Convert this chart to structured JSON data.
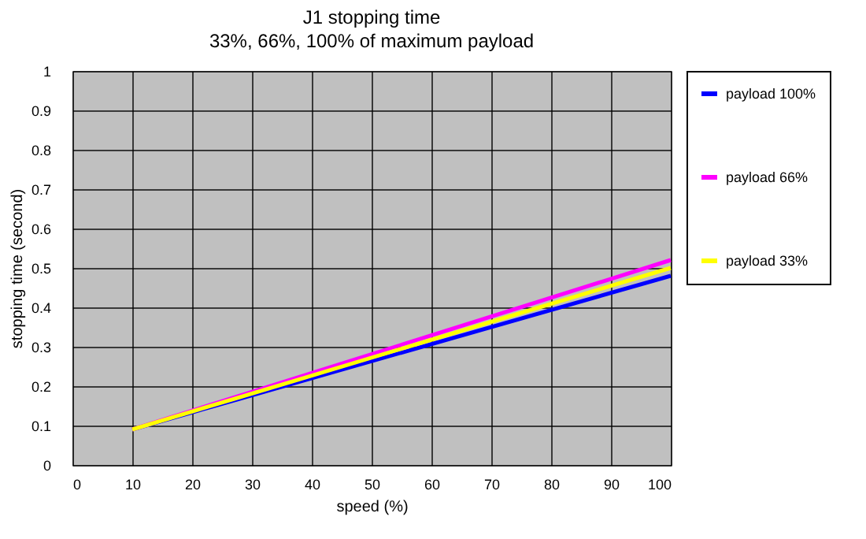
{
  "chart_data": {
    "type": "line",
    "title": "J1 stopping time",
    "subtitle": "33%, 66%, 100% of maximum payload",
    "xlabel": "speed (%)",
    "ylabel": "stopping time (second)",
    "x": [
      10,
      100
    ],
    "series": [
      {
        "name": "payload 100%",
        "color": "#0000ff",
        "values": [
          0.09,
          0.48
        ]
      },
      {
        "name": "payload 66%",
        "color": "#ff00ff",
        "values": [
          0.09,
          0.52
        ]
      },
      {
        "name": "payload 33%",
        "color": "#ffff00",
        "values": [
          0.09,
          0.5
        ]
      }
    ],
    "xlim": [
      0,
      100
    ],
    "xticks": [
      0,
      10,
      20,
      30,
      40,
      50,
      60,
      70,
      80,
      90,
      100
    ],
    "ylim": [
      0,
      1
    ],
    "yticks": [
      0,
      0.1,
      0.2,
      0.3,
      0.4,
      0.5,
      0.6,
      0.7,
      0.8,
      0.9,
      1
    ],
    "grid": true,
    "legend": "right",
    "marker": "none",
    "line_style": "solid"
  }
}
